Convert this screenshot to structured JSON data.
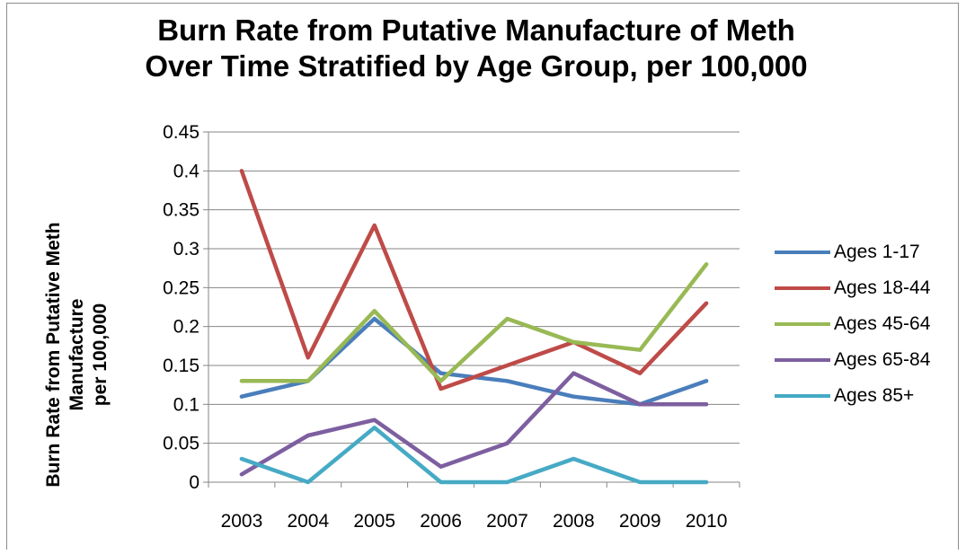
{
  "chart_data": {
    "type": "line",
    "title_line1": "Burn Rate from Putative Manufacture of Meth",
    "title_line2": "Over Time Stratified by Age Group, per 100,000",
    "ylabel_line1": "Burn Rate from Putative Meth",
    "ylabel_line2": "Manufacture",
    "ylabel_line3": "per 100,000",
    "xlabel": "",
    "x": [
      "2003",
      "2004",
      "2005",
      "2006",
      "2007",
      "2008",
      "2009",
      "2010"
    ],
    "ylim": [
      0,
      0.45
    ],
    "yticks": [
      0,
      0.05,
      0.1,
      0.15,
      0.2,
      0.25,
      0.3,
      0.35,
      0.4,
      0.45
    ],
    "ytick_labels": [
      "0",
      "0.05",
      "0.1",
      "0.15",
      "0.2",
      "0.25",
      "0.3",
      "0.35",
      "0.4",
      "0.45"
    ],
    "grid": "horizontal",
    "legend_position": "right",
    "series": [
      {
        "name": "Ages 1-17",
        "color": "#4a7ebb",
        "values": [
          0.11,
          0.13,
          0.21,
          0.14,
          0.13,
          0.11,
          0.1,
          0.13
        ]
      },
      {
        "name": "Ages 18-44",
        "color": "#be4b48",
        "values": [
          0.4,
          0.16,
          0.33,
          0.12,
          0.15,
          0.18,
          0.14,
          0.23
        ]
      },
      {
        "name": "Ages 45-64",
        "color": "#98b954",
        "values": [
          0.13,
          0.13,
          0.22,
          0.13,
          0.21,
          0.18,
          0.17,
          0.28
        ]
      },
      {
        "name": "Ages 65-84",
        "color": "#7d5fa0",
        "values": [
          0.01,
          0.06,
          0.08,
          0.02,
          0.05,
          0.14,
          0.1,
          0.1
        ]
      },
      {
        "name": "Ages 85+",
        "color": "#46aac5",
        "values": [
          0.03,
          0.0,
          0.07,
          0.0,
          0.0,
          0.03,
          0.0,
          0.0
        ]
      }
    ]
  }
}
